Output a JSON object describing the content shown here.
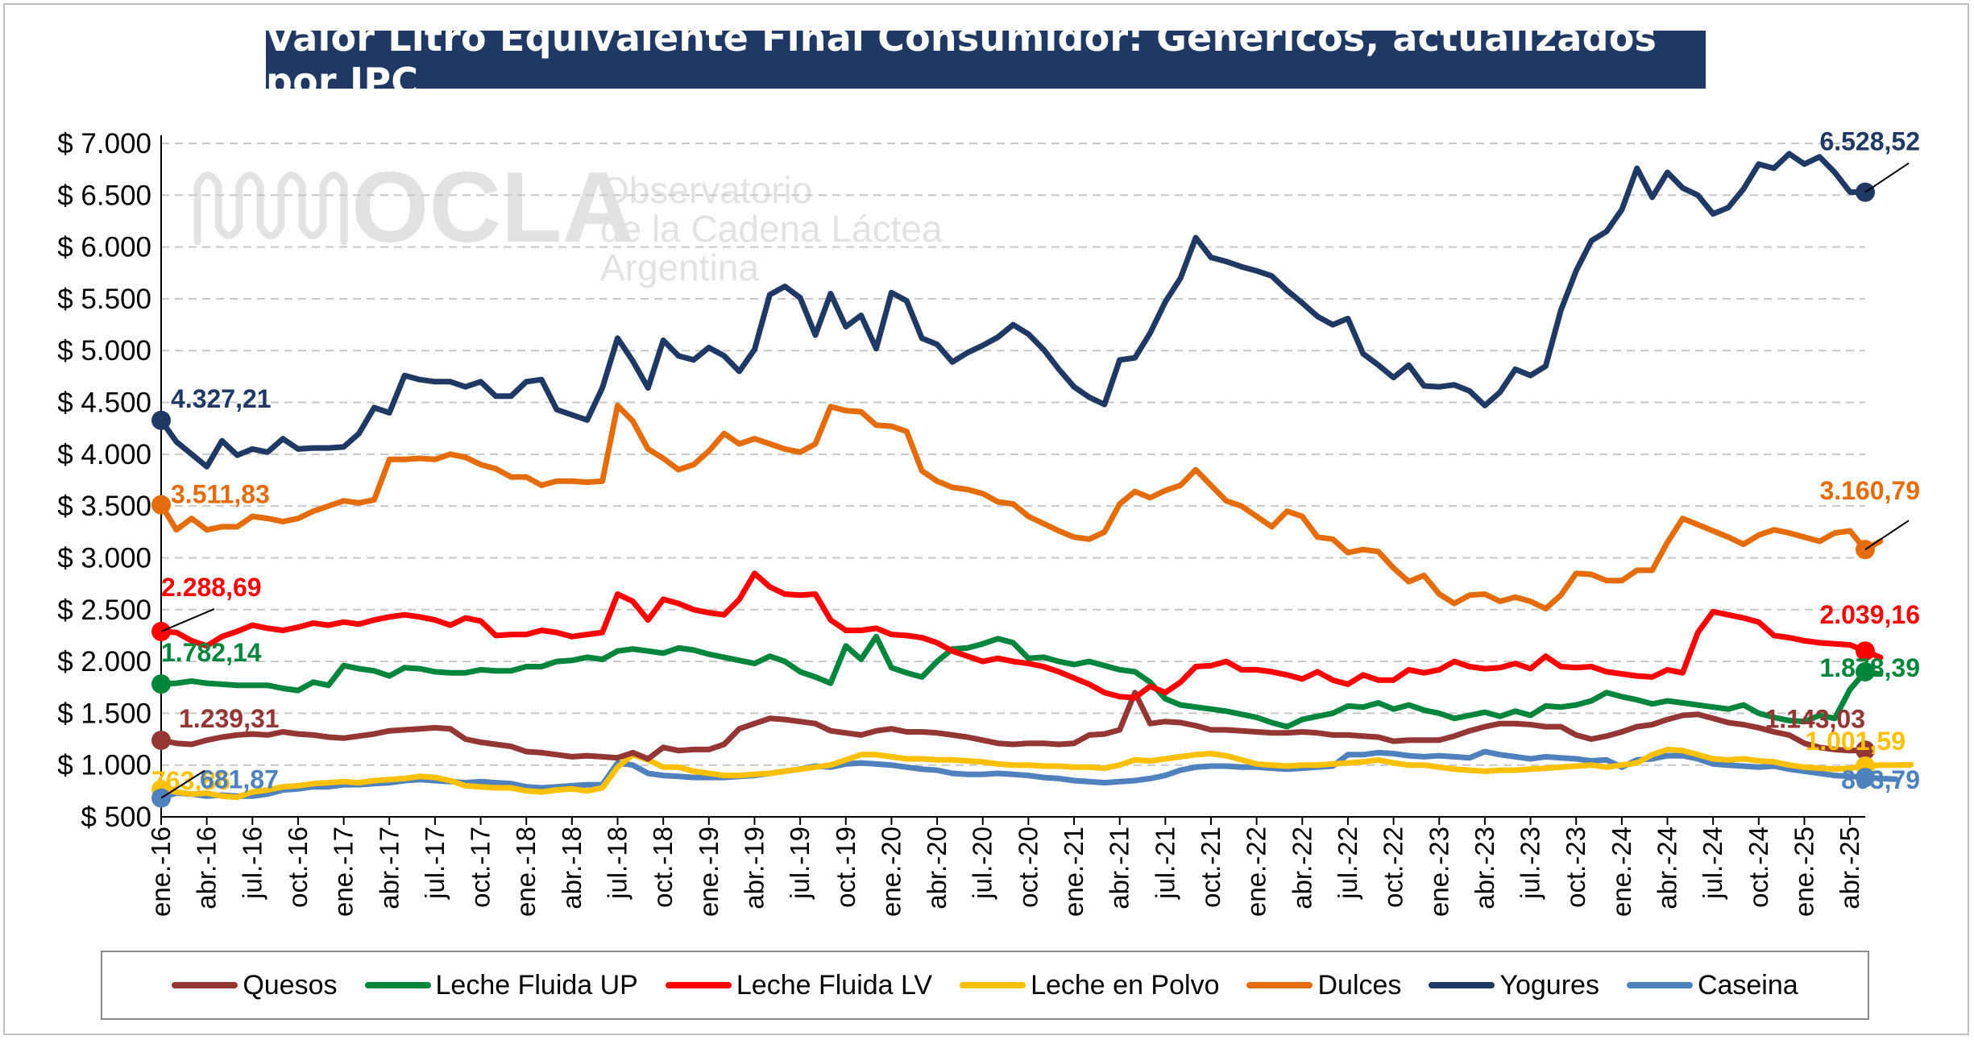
{
  "title": "Valor Litro Equivalente Final Consumidor: Genéricos, actualizados por IPC",
  "watermark": {
    "logo_text": "OCLA",
    "line1": "Observatorio",
    "line2": "de la Cadena Láctea",
    "line3": "Argentina"
  },
  "chart_data": {
    "type": "line",
    "title": "Valor Litro Equivalente Final Consumidor: Genéricos, actualizados por IPC",
    "xlabel": "",
    "ylabel": "",
    "ylim": [
      500,
      7000
    ],
    "y_ticks": [
      500,
      1000,
      1500,
      2000,
      2500,
      3000,
      3500,
      4000,
      4500,
      5000,
      5500,
      6000,
      6500,
      7000
    ],
    "y_tick_labels": [
      "$ 500",
      "$ 1.000",
      "$ 1.500",
      "$ 2.000",
      "$ 2.500",
      "$ 3.000",
      "$ 3.500",
      "$ 4.000",
      "$ 4.500",
      "$ 5.000",
      "$ 5.500",
      "$ 6.000",
      "$ 6.500",
      "$ 7.000"
    ],
    "x_tick_labels": [
      "ene.-16",
      "abr.-16",
      "jul.-16",
      "oct.-16",
      "ene.-17",
      "abr.-17",
      "jul.-17",
      "oct.-17",
      "ene.-18",
      "abr.-18",
      "jul.-18",
      "oct.-18",
      "ene.-19",
      "abr.-19",
      "jul.-19",
      "oct.-19",
      "ene.-20",
      "abr.-20",
      "jul.-20",
      "oct.-20",
      "ene.-21",
      "abr.-21",
      "jul.-21",
      "oct.-21",
      "ene.-22",
      "abr.-22",
      "jul.-22",
      "oct.-22",
      "ene.-23",
      "abr.-23",
      "jul.-23",
      "oct.-23",
      "ene.-24",
      "abr.-24",
      "jul.-24",
      "oct.-24",
      "ene.-25",
      "abr.-25"
    ],
    "grid": true,
    "legend_position": "bottom",
    "series": [
      {
        "name": "Quesos",
        "color": "#943634",
        "start_label": "1.239,31",
        "end_label": "1.143,03",
        "values": [
          1239,
          1210,
          1200,
          1240,
          1270,
          1290,
          1300,
          1290,
          1320,
          1300,
          1290,
          1270,
          1260,
          1280,
          1300,
          1330,
          1340,
          1350,
          1360,
          1350,
          1250,
          1220,
          1200,
          1180,
          1130,
          1120,
          1100,
          1080,
          1090,
          1080,
          1070,
          1120,
          1060,
          1170,
          1140,
          1150,
          1150,
          1200,
          1350,
          1400,
          1450,
          1440,
          1420,
          1400,
          1330,
          1310,
          1290,
          1330,
          1350,
          1320,
          1320,
          1310,
          1290,
          1270,
          1240,
          1210,
          1200,
          1210,
          1210,
          1200,
          1210,
          1290,
          1300,
          1340,
          1700,
          1400,
          1420,
          1410,
          1380,
          1340,
          1340,
          1330,
          1320,
          1310,
          1310,
          1320,
          1310,
          1290,
          1290,
          1280,
          1270,
          1230,
          1240,
          1240,
          1240,
          1280,
          1330,
          1370,
          1400,
          1400,
          1390,
          1370,
          1370,
          1290,
          1250,
          1280,
          1320,
          1370,
          1390,
          1440,
          1480,
          1490,
          1450,
          1410,
          1390,
          1360,
          1320,
          1290,
          1210,
          1170,
          1150,
          1140,
          1143
        ]
      },
      {
        "name": "Leche Fluida UP",
        "color": "#00863c",
        "start_label": "1.782,14",
        "end_label": "1.878,39",
        "values": [
          1782,
          1790,
          1810,
          1790,
          1780,
          1770,
          1770,
          1770,
          1740,
          1720,
          1800,
          1770,
          1960,
          1930,
          1910,
          1860,
          1940,
          1930,
          1900,
          1890,
          1890,
          1920,
          1910,
          1910,
          1950,
          1950,
          2000,
          2010,
          2040,
          2020,
          2100,
          2120,
          2100,
          2080,
          2130,
          2110,
          2070,
          2040,
          2010,
          1980,
          2050,
          2000,
          1900,
          1850,
          1790,
          2150,
          2020,
          2240,
          1940,
          1890,
          1850,
          2000,
          2120,
          2130,
          2170,
          2220,
          2180,
          2030,
          2040,
          2000,
          1970,
          2000,
          1960,
          1920,
          1900,
          1800,
          1640,
          1580,
          1560,
          1540,
          1520,
          1490,
          1460,
          1410,
          1370,
          1440,
          1470,
          1500,
          1570,
          1560,
          1600,
          1540,
          1580,
          1530,
          1500,
          1450,
          1480,
          1510,
          1470,
          1520,
          1480,
          1570,
          1560,
          1580,
          1620,
          1700,
          1660,
          1630,
          1590,
          1620,
          1600,
          1580,
          1560,
          1540,
          1580,
          1500,
          1460,
          1430,
          1420,
          1480,
          1450,
          1730,
          1900,
          1878
        ]
      },
      {
        "name": "Leche Fluida LV",
        "color": "#ff0000",
        "start_label": "2.288,69",
        "end_label": "2.039,16",
        "values": [
          2289,
          2280,
          2200,
          2150,
          2240,
          2290,
          2350,
          2320,
          2300,
          2330,
          2370,
          2350,
          2380,
          2360,
          2400,
          2430,
          2450,
          2430,
          2400,
          2350,
          2420,
          2390,
          2250,
          2260,
          2260,
          2300,
          2280,
          2240,
          2260,
          2280,
          2650,
          2580,
          2400,
          2600,
          2560,
          2500,
          2470,
          2450,
          2600,
          2850,
          2720,
          2650,
          2640,
          2650,
          2400,
          2300,
          2300,
          2320,
          2260,
          2250,
          2230,
          2180,
          2100,
          2050,
          2000,
          2030,
          2000,
          1980,
          1950,
          1900,
          1840,
          1780,
          1700,
          1660,
          1650,
          1760,
          1700,
          1800,
          1950,
          1960,
          2000,
          1920,
          1920,
          1900,
          1870,
          1830,
          1900,
          1820,
          1780,
          1870,
          1820,
          1820,
          1920,
          1890,
          1920,
          2000,
          1950,
          1930,
          1940,
          1980,
          1930,
          2050,
          1950,
          1940,
          1950,
          1900,
          1880,
          1860,
          1850,
          1920,
          1890,
          2280,
          2480,
          2450,
          2420,
          2380,
          2250,
          2230,
          2200,
          2180,
          2170,
          2160,
          2100,
          2039
        ]
      },
      {
        "name": "Leche en Polvo",
        "color": "#ffc000",
        "start_label": "763,86",
        "end_label": "1.001,59",
        "values": [
          764,
          740,
          720,
          730,
          700,
          690,
          740,
          760,
          790,
          800,
          820,
          830,
          840,
          830,
          850,
          860,
          870,
          890,
          880,
          850,
          800,
          790,
          780,
          780,
          750,
          740,
          760,
          770,
          750,
          780,
          980,
          1100,
          1050,
          980,
          980,
          940,
          920,
          900,
          900,
          910,
          920,
          940,
          960,
          980,
          1000,
          1050,
          1100,
          1100,
          1080,
          1060,
          1060,
          1050,
          1050,
          1040,
          1030,
          1010,
          1000,
          1000,
          990,
          990,
          980,
          980,
          970,
          1000,
          1050,
          1040,
          1060,
          1080,
          1100,
          1110,
          1090,
          1050,
          1010,
          1000,
          990,
          1000,
          1000,
          1010,
          1020,
          1030,
          1050,
          1020,
          1000,
          1000,
          980,
          960,
          950,
          940,
          950,
          950,
          960,
          970,
          980,
          990,
          1000,
          980,
          1000,
          1020,
          1100,
          1150,
          1140,
          1100,
          1060,
          1050,
          1060,
          1040,
          1030,
          1000,
          980,
          970,
          960,
          970,
          990,
          1000,
          1000,
          1002
        ]
      },
      {
        "name": "Dulces",
        "color": "#e46c0a",
        "start_label": "3.511,83",
        "end_label": "3.160,79",
        "values": [
          3512,
          3270,
          3380,
          3270,
          3300,
          3300,
          3400,
          3380,
          3350,
          3380,
          3450,
          3500,
          3550,
          3530,
          3560,
          3950,
          3950,
          3960,
          3950,
          4000,
          3970,
          3900,
          3860,
          3780,
          3780,
          3700,
          3740,
          3740,
          3730,
          3740,
          4470,
          4320,
          4050,
          3960,
          3850,
          3900,
          4030,
          4200,
          4100,
          4150,
          4100,
          4050,
          4020,
          4100,
          4460,
          4420,
          4410,
          4280,
          4270,
          4220,
          3840,
          3740,
          3680,
          3660,
          3620,
          3540,
          3520,
          3400,
          3330,
          3260,
          3200,
          3180,
          3250,
          3520,
          3640,
          3580,
          3650,
          3700,
          3850,
          3700,
          3550,
          3500,
          3400,
          3300,
          3450,
          3400,
          3200,
          3180,
          3050,
          3080,
          3060,
          2900,
          2770,
          2830,
          2650,
          2560,
          2640,
          2650,
          2580,
          2620,
          2580,
          2510,
          2640,
          2850,
          2840,
          2780,
          2780,
          2880,
          2880,
          3150,
          3380,
          3320,
          3260,
          3200,
          3130,
          3220,
          3270,
          3240,
          3200,
          3160,
          3240,
          3260,
          3080,
          3161
        ]
      },
      {
        "name": "Yogures",
        "color": "#1f3864",
        "start_label": "4.327,21",
        "end_label": "6.528,52",
        "values": [
          4327,
          4120,
          4000,
          3880,
          4130,
          3990,
          4050,
          4020,
          4150,
          4050,
          4060,
          4060,
          4070,
          4200,
          4450,
          4400,
          4760,
          4720,
          4700,
          4700,
          4650,
          4700,
          4560,
          4560,
          4700,
          4720,
          4430,
          4380,
          4330,
          4640,
          5120,
          4900,
          4640,
          5100,
          4950,
          4910,
          5030,
          4950,
          4800,
          5010,
          5540,
          5620,
          5510,
          5150,
          5550,
          5230,
          5340,
          5020,
          5560,
          5480,
          5120,
          5060,
          4890,
          4980,
          5050,
          5130,
          5250,
          5160,
          5010,
          4820,
          4650,
          4550,
          4480,
          4910,
          4930,
          5170,
          5470,
          5700,
          6090,
          5900,
          5860,
          5810,
          5770,
          5720,
          5580,
          5460,
          5330,
          5250,
          5310,
          4970,
          4860,
          4740,
          4860,
          4660,
          4650,
          4670,
          4610,
          4470,
          4600,
          4820,
          4760,
          4850,
          5390,
          5770,
          6060,
          6150,
          6360,
          6760,
          6480,
          6720,
          6570,
          6500,
          6320,
          6380,
          6560,
          6800,
          6760,
          6900,
          6800,
          6870,
          6720,
          6530,
          6529
        ]
      },
      {
        "name": "Caseina",
        "color": "#4f81bd",
        "start_label": "681,87",
        "end_label": "863,79",
        "values": [
          682,
          730,
          720,
          700,
          710,
          700,
          700,
          720,
          760,
          770,
          790,
          790,
          810,
          810,
          820,
          830,
          850,
          860,
          850,
          840,
          830,
          840,
          830,
          820,
          790,
          780,
          790,
          800,
          810,
          810,
          1020,
          1000,
          920,
          900,
          890,
          880,
          880,
          880,
          890,
          900,
          920,
          940,
          960,
          990,
          980,
          1010,
          1020,
          1010,
          1000,
          980,
          960,
          950,
          920,
          910,
          910,
          920,
          910,
          900,
          880,
          870,
          850,
          840,
          830,
          840,
          850,
          870,
          900,
          950,
          980,
          990,
          990,
          980,
          980,
          970,
          960,
          970,
          980,
          990,
          1100,
          1100,
          1120,
          1110,
          1090,
          1080,
          1090,
          1080,
          1070,
          1130,
          1100,
          1080,
          1060,
          1080,
          1070,
          1060,
          1040,
          1050,
          980,
          1050,
          1060,
          1090,
          1090,
          1060,
          1010,
          1000,
          990,
          980,
          990,
          960,
          940,
          920,
          900,
          890,
          880,
          870,
          864
        ]
      }
    ]
  }
}
